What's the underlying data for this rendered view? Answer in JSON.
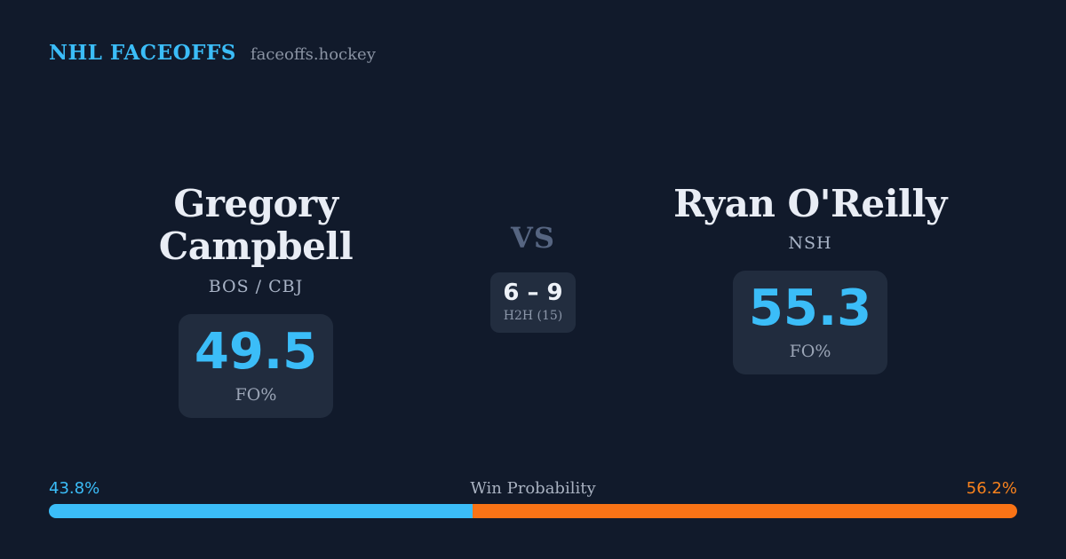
{
  "colors": {
    "background": "#111a2b",
    "card_background": "#212c3e",
    "accent_blue": "#3bbdf8",
    "accent_orange": "#f97316",
    "text_primary": "#e9edf5",
    "text_muted": "#9ba5b6"
  },
  "header": {
    "brand": "NHL FACEOFFS",
    "site_url": "faceoffs.hockey"
  },
  "matchup": {
    "left_player": {
      "name": "Gregory Campbell",
      "teams": "BOS / CBJ",
      "stat_value": "49.5",
      "stat_label": "FO%"
    },
    "right_player": {
      "name": "Ryan O'Reilly",
      "teams": "NSH",
      "stat_value": "55.3",
      "stat_label": "FO%"
    },
    "vs_label": "VS",
    "h2h": {
      "record": "6 – 9",
      "label": "H2H (15)"
    }
  },
  "win_probability": {
    "title": "Win Probability",
    "left_label": "43.8%",
    "right_label": "56.2%",
    "left_value": 43.8,
    "right_value": 56.2
  },
  "chart_data": [
    {
      "type": "bar",
      "title": "FO% comparison",
      "categories": [
        "Gregory Campbell",
        "Ryan O'Reilly"
      ],
      "values": [
        49.5,
        55.3
      ],
      "ylabel": "FO%"
    },
    {
      "type": "bar",
      "title": "Win Probability",
      "categories": [
        "Gregory Campbell",
        "Ryan O'Reilly"
      ],
      "values": [
        43.8,
        56.2
      ],
      "colors": [
        "#3bbdf8",
        "#f97316"
      ],
      "layout": "horizontal-stacked",
      "range": [
        0,
        100
      ],
      "annotations": [
        "43.8%",
        "56.2%",
        "H2H record 6 – 9 over 15 games"
      ]
    }
  ]
}
